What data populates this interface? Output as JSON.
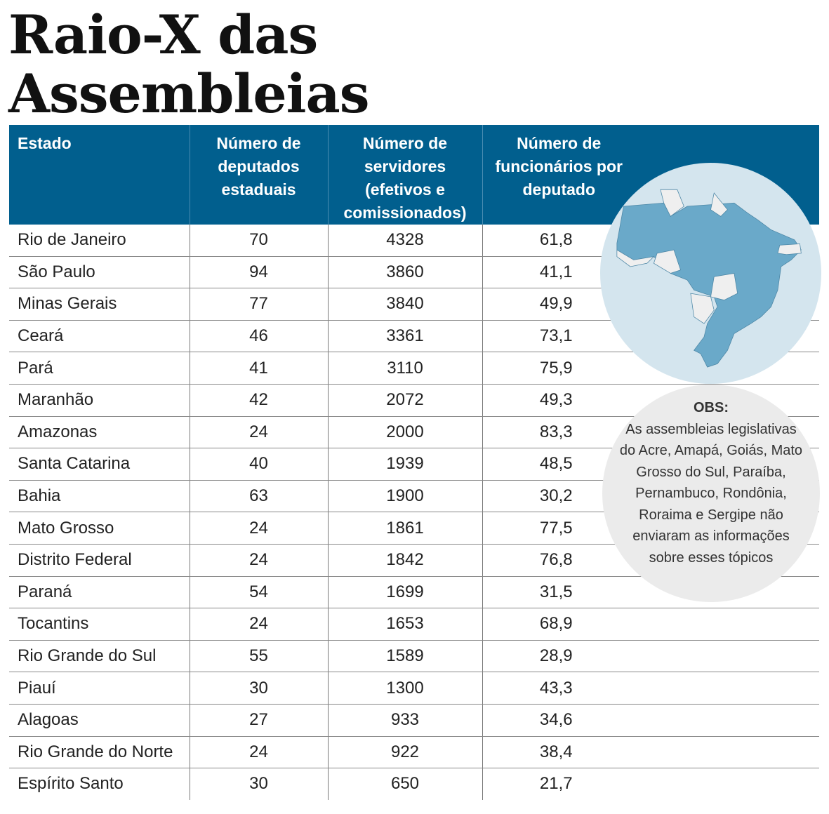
{
  "title": [
    "Raio-X das",
    "Assembleias"
  ],
  "chart_data": {
    "type": "table",
    "columns": [
      "Estado",
      "Número de deputados estaduais",
      "Número de servidores (efetivos e comissionados)",
      "Número de funcionários por deputado"
    ],
    "rows": [
      [
        "Rio de Janeiro",
        "70",
        "4328",
        "61,8"
      ],
      [
        "São Paulo",
        "94",
        "3860",
        "41,1"
      ],
      [
        "Minas Gerais",
        "77",
        "3840",
        "49,9"
      ],
      [
        "Ceará",
        "46",
        "3361",
        "73,1"
      ],
      [
        "Pará",
        "41",
        "3110",
        "75,9"
      ],
      [
        "Maranhão",
        "42",
        "2072",
        "49,3"
      ],
      [
        "Amazonas",
        "24",
        "2000",
        "83,3"
      ],
      [
        "Santa Catarina",
        "40",
        "1939",
        "48,5"
      ],
      [
        "Bahia",
        "63",
        "1900",
        "30,2"
      ],
      [
        "Mato Grosso",
        "24",
        "1861",
        "77,5"
      ],
      [
        "Distrito Federal",
        "24",
        "1842",
        "76,8"
      ],
      [
        "Paraná",
        "54",
        "1699",
        "31,5"
      ],
      [
        "Tocantins",
        "24",
        "1653",
        "68,9"
      ],
      [
        "Rio Grande do Sul",
        "55",
        "1589",
        "28,9"
      ],
      [
        "Piauí",
        "30",
        "1300",
        "43,3"
      ],
      [
        "Alagoas",
        "27",
        "933",
        "34,6"
      ],
      [
        "Rio Grande do Norte",
        "24",
        "922",
        "38,4"
      ],
      [
        "Espírito Santo",
        "30",
        "650",
        "21,7"
      ]
    ]
  },
  "obs": {
    "label": "OBS:",
    "text": "As assembleias legislativas do Acre, Amapá, Goiás, Mato Grosso do Sul, Paraíba, Pernambuco, Rondônia, Roraima e Sergipe não enviaram as informações sobre esses tópicos"
  },
  "colors": {
    "header": "#015f8e",
    "map_bg": "#d4e5ee",
    "state_reported": "#6aa9c9",
    "state_missing": "#efefef",
    "obs_bg": "#ebebeb"
  }
}
